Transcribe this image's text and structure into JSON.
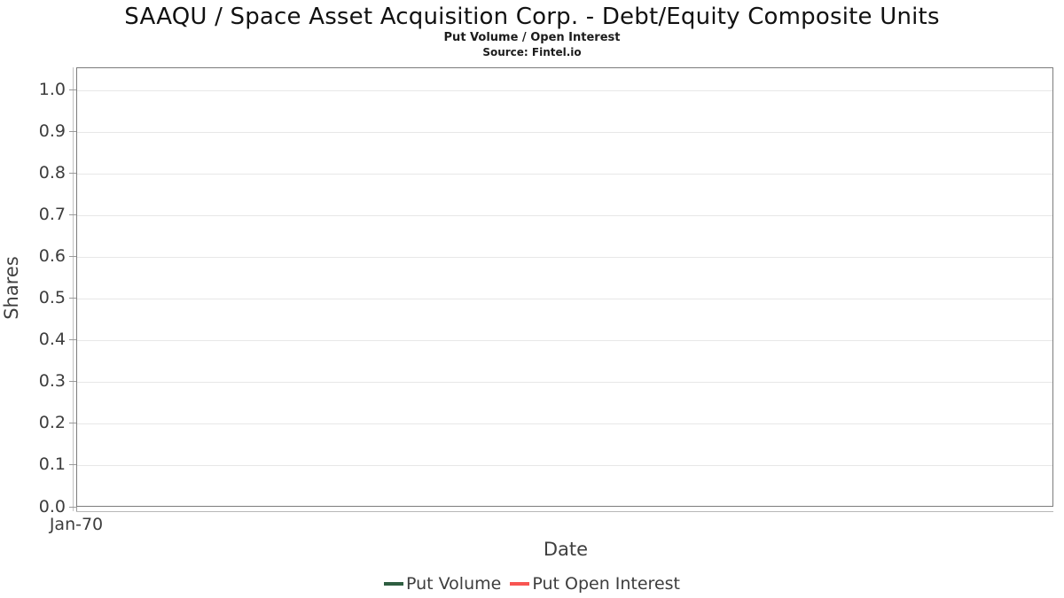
{
  "header": {
    "title": "SAAQU / Space Asset Acquisition Corp. - Debt/Equity Composite Units",
    "subtitle": "Put Volume / Open Interest",
    "source": "Source: Fintel.io"
  },
  "chart_data": {
    "type": "line",
    "title": "SAAQU / Space Asset Acquisition Corp. - Debt/Equity Composite Units",
    "subtitle": "Put Volume / Open Interest",
    "source": "Source: Fintel.io",
    "xlabel": "Date",
    "ylabel": "Shares",
    "ylim": [
      0,
      1.055
    ],
    "y_ticks": [
      "0.0",
      "0.1",
      "0.2",
      "0.3",
      "0.4",
      "0.5",
      "0.6",
      "0.7",
      "0.8",
      "0.9",
      "1.0"
    ],
    "y_tick_values": [
      0.0,
      0.1,
      0.2,
      0.3,
      0.4,
      0.5,
      0.6,
      0.7,
      0.8,
      0.9,
      1.0
    ],
    "x_ticks": [
      "Jan-70"
    ],
    "grid": "horizontal",
    "legend_position": "bottom",
    "series": [
      {
        "name": "Put Volume",
        "color": "#2e5e41",
        "x": [],
        "values": []
      },
      {
        "name": "Put Open Interest",
        "color": "#f85552",
        "x": [],
        "values": []
      }
    ]
  },
  "legend": {
    "items": [
      {
        "label": "Put Volume",
        "color": "#2e5e41"
      },
      {
        "label": "Put Open Interest",
        "color": "#f85552"
      }
    ]
  },
  "colors": {
    "plot_border": "#7c7c7c",
    "gridline": "#e7e7e7",
    "tick_text": "#3d3d3d",
    "axis_title_text": "#3f3f3f",
    "title_text": "#111111"
  }
}
